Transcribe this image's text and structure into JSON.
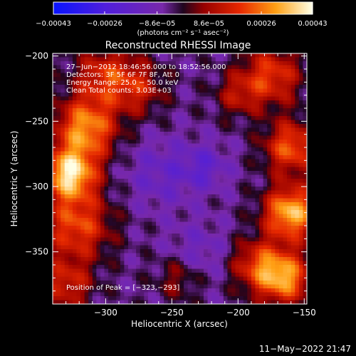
{
  "chart_data": {
    "type": "heatmap",
    "title": "Reconstructed RHESSI Image",
    "xlabel": "Heliocentric X (arcsec)",
    "ylabel": "Heliocentric Y (arcsec)",
    "xlim": [
      -340,
      -148
    ],
    "ylim": [
      -390,
      -198
    ],
    "x_ticks": [
      -300,
      -250,
      -200,
      -150
    ],
    "x_tick_labels": [
      "−300",
      "−250",
      "−200",
      "−150"
    ],
    "y_ticks": [
      -200,
      -250,
      -300,
      -350
    ],
    "y_tick_labels": [
      "−200",
      "−250",
      "−300",
      "−350"
    ],
    "colorbar": {
      "ticks": [
        -0.00043,
        -0.00026,
        -8.6e-05,
        8.6e-05,
        0.00026,
        0.00043
      ],
      "tick_labels": [
        "−0.00043",
        "−0.00026",
        "−8.6e−05",
        "8.6e−05",
        "0.00026",
        "0.00043"
      ],
      "units_label": "(photons cm⁻² s⁻¹ asec⁻²)",
      "range": [
        -0.00043,
        0.00043
      ]
    },
    "annotations": [
      "27−Jun−2012 18:46:56.000 to 18:52:56.000",
      "Detectors: 3F 5F 6F 7F 8F, Att 0",
      "Energy Range: 25.0 − 50.0 keV",
      "Clean    Total counts: 3.03E+03"
    ],
    "peak_label": "Position of Peak = [−323,−293]",
    "peak_position": [
      -323,
      -293
    ],
    "timestamp": "11−May−2022 21:47",
    "hotspots": [
      {
        "x": -327,
        "y": -290,
        "value": 0.00043,
        "sigma": 14
      },
      {
        "x": -315,
        "y": -255,
        "value": 0.00034,
        "sigma": 16
      },
      {
        "x": -322,
        "y": -330,
        "value": 0.00026,
        "sigma": 18
      },
      {
        "x": -330,
        "y": -375,
        "value": 0.0002,
        "sigma": 14
      },
      {
        "x": -300,
        "y": -215,
        "value": 0.00022,
        "sigma": 16
      },
      {
        "x": -275,
        "y": -225,
        "value": 0.00016,
        "sigma": 14
      },
      {
        "x": -160,
        "y": -320,
        "value": 0.0004,
        "sigma": 14
      },
      {
        "x": -165,
        "y": -370,
        "value": 0.00034,
        "sigma": 14
      },
      {
        "x": -160,
        "y": -270,
        "value": 0.00028,
        "sigma": 14
      },
      {
        "x": -175,
        "y": -215,
        "value": 0.00024,
        "sigma": 16
      },
      {
        "x": -185,
        "y": -360,
        "value": 0.00022,
        "sigma": 14
      },
      {
        "x": -200,
        "y": -230,
        "value": 0.00014,
        "sigma": 12
      },
      {
        "x": -245,
        "y": -370,
        "value": 0.00012,
        "sigma": 12
      },
      {
        "x": -258,
        "y": -290,
        "value": -0.0001,
        "sigma": 18
      },
      {
        "x": -225,
        "y": -285,
        "value": -0.00012,
        "sigma": 12
      },
      {
        "x": -230,
        "y": -350,
        "value": -8e-05,
        "sigma": 16
      }
    ],
    "background_value": -5e-05
  }
}
